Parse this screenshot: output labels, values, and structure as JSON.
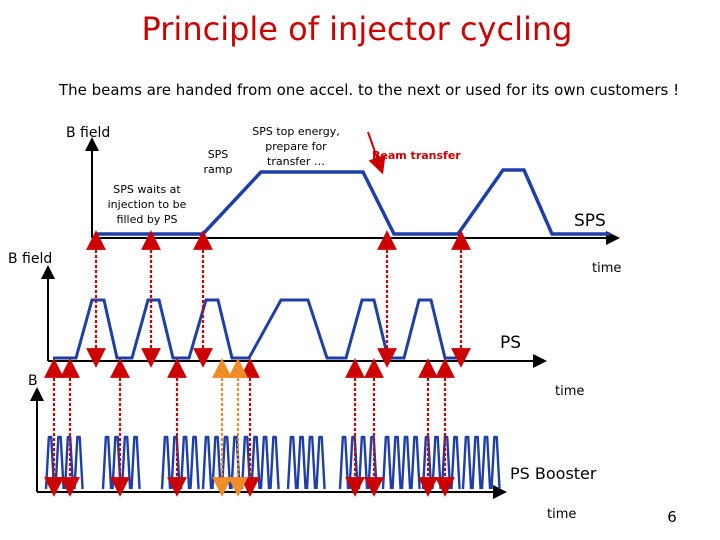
{
  "title": "Principle of injector cycling",
  "subtitle": "The beams are handed from one accel. to the next or used for its own customers !",
  "sps": {
    "axis_label": "B field",
    "ramp_label": [
      "SPS",
      "ramp"
    ],
    "top_label": [
      "SPS top energy,",
      "prepare for",
      "transfer …"
    ],
    "transfer_label": "Beam transfer",
    "wait_label": [
      "SPS waits at",
      "injection to be",
      "filled by PS"
    ],
    "machine_name": "SPS",
    "time_label": "time"
  },
  "ps": {
    "axis_label": "B field",
    "machine_name": "PS",
    "time_label": "time"
  },
  "booster": {
    "axis_label": "B",
    "machine_name": "PS Booster",
    "time_label": "time"
  },
  "slide_number": "6",
  "colors": {
    "title": "#cc0000",
    "waveform": "#1e3fa8",
    "arrow_red": "#cc0000",
    "arrow_orange": "#f08c28",
    "axis": "#000000"
  }
}
